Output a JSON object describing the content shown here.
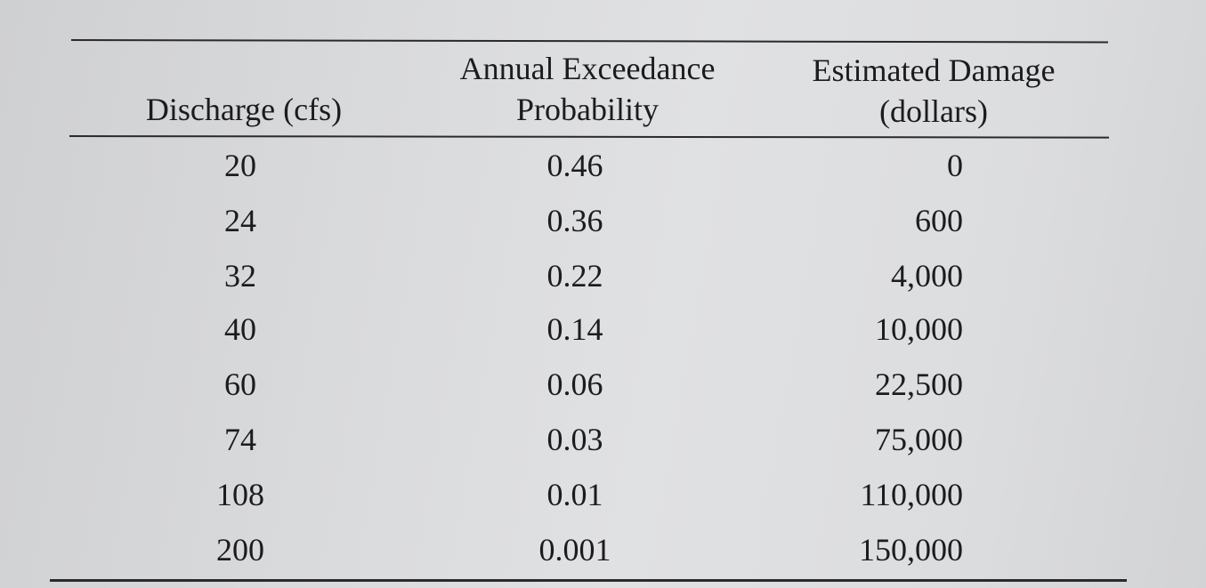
{
  "table": {
    "headers": {
      "discharge": [
        "Discharge (cfs)"
      ],
      "aep": [
        "Annual Exceedance",
        "Probability"
      ],
      "damage": [
        "Estimated Damage",
        "(dollars)"
      ]
    },
    "rows": [
      {
        "discharge": "20",
        "aep": "0.46",
        "damage": "0"
      },
      {
        "discharge": "24",
        "aep": "0.36",
        "damage": "600"
      },
      {
        "discharge": "32",
        "aep": "0.22",
        "damage": "4,000"
      },
      {
        "discharge": "40",
        "aep": "0.14",
        "damage": "10,000"
      },
      {
        "discharge": "60",
        "aep": "0.06",
        "damage": "22,500"
      },
      {
        "discharge": "74",
        "aep": "0.03",
        "damage": "75,000"
      },
      {
        "discharge": "108",
        "aep": "0.01",
        "damage": "110,000"
      },
      {
        "discharge": "200",
        "aep": "0.001",
        "damage": "150,000"
      }
    ]
  }
}
